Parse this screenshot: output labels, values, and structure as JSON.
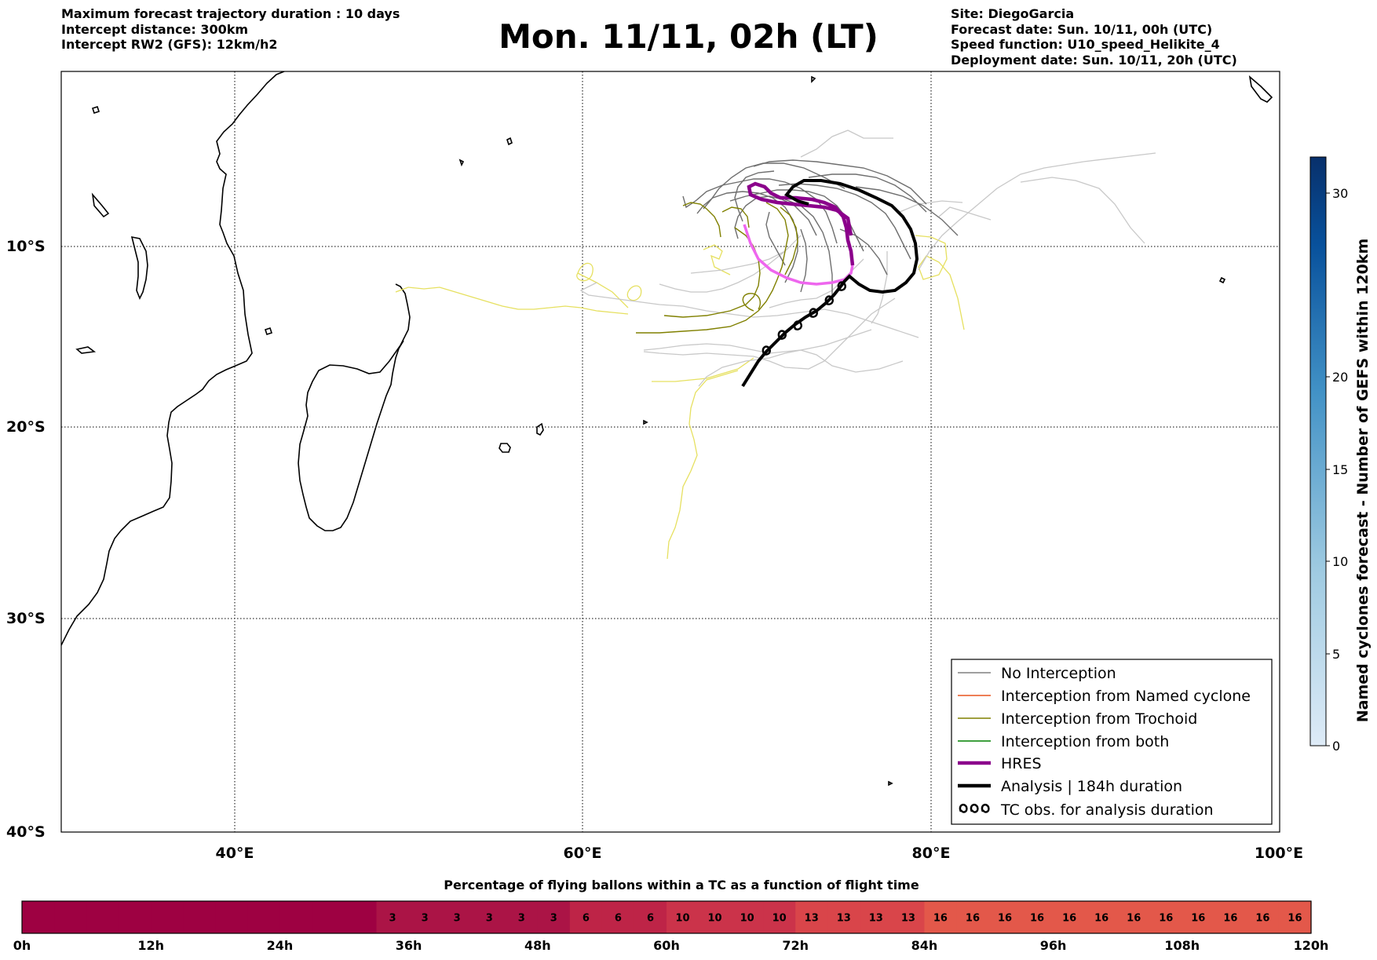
{
  "header": {
    "left": [
      "Maximum forecast trajectory duration : 10 days",
      "Intercept distance: 300km",
      "Intercept RW2 (GFS):  12km/h2"
    ],
    "title": "Mon. 11/11, 02h (LT)",
    "right": [
      "Site: DiegoGarcia",
      "Forecast date: Sun. 10/11, 00h (UTC)",
      "Speed function: U10_speed_Helikite_4",
      "Deployment date: Sun. 10/11, 20h (UTC)"
    ]
  },
  "map": {
    "lat_labels": [
      "10°S",
      "20°S",
      "30°S",
      "40°S"
    ],
    "lon_labels": [
      "40°E",
      "60°E",
      "80°E",
      "100°E"
    ],
    "grid": true
  },
  "legend": {
    "items": [
      {
        "label": "No Interception",
        "color": "#808080"
      },
      {
        "label": "Interception from Named cyclone",
        "color": "#e8531f"
      },
      {
        "label": "Interception from Trochoid",
        "color": "#808000"
      },
      {
        "label": "Interception from both",
        "color": "#008000"
      },
      {
        "label": "HRES",
        "color": "#8b008b"
      },
      {
        "label": "Analysis | 184h duration",
        "color": "#000000"
      },
      {
        "label": "TC obs. for analysis duration",
        "color": "#000000"
      }
    ]
  },
  "colorbar": {
    "title": "Named cyclones forecast - Number of GEFS within 120km",
    "ticks": [
      "0",
      "5",
      "10",
      "15",
      "20",
      "30"
    ]
  },
  "bottom_bar": {
    "title": "Percentage of flying ballons within a TC as a function of flight time",
    "cells": [
      "",
      "",
      "",
      "",
      "",
      "",
      "",
      "",
      "",
      "",
      "",
      "3",
      "3",
      "3",
      "3",
      "3",
      "3",
      "6",
      "6",
      "6",
      "10",
      "10",
      "10",
      "10",
      "13",
      "13",
      "13",
      "13",
      "16",
      "16",
      "16",
      "16",
      "16",
      "16",
      "16",
      "16",
      "16",
      "16",
      "16",
      "16"
    ],
    "time_labels": [
      "0h",
      "12h",
      "24h",
      "36h",
      "48h",
      "60h",
      "72h",
      "84h",
      "96h",
      "108h",
      "120h"
    ]
  }
}
